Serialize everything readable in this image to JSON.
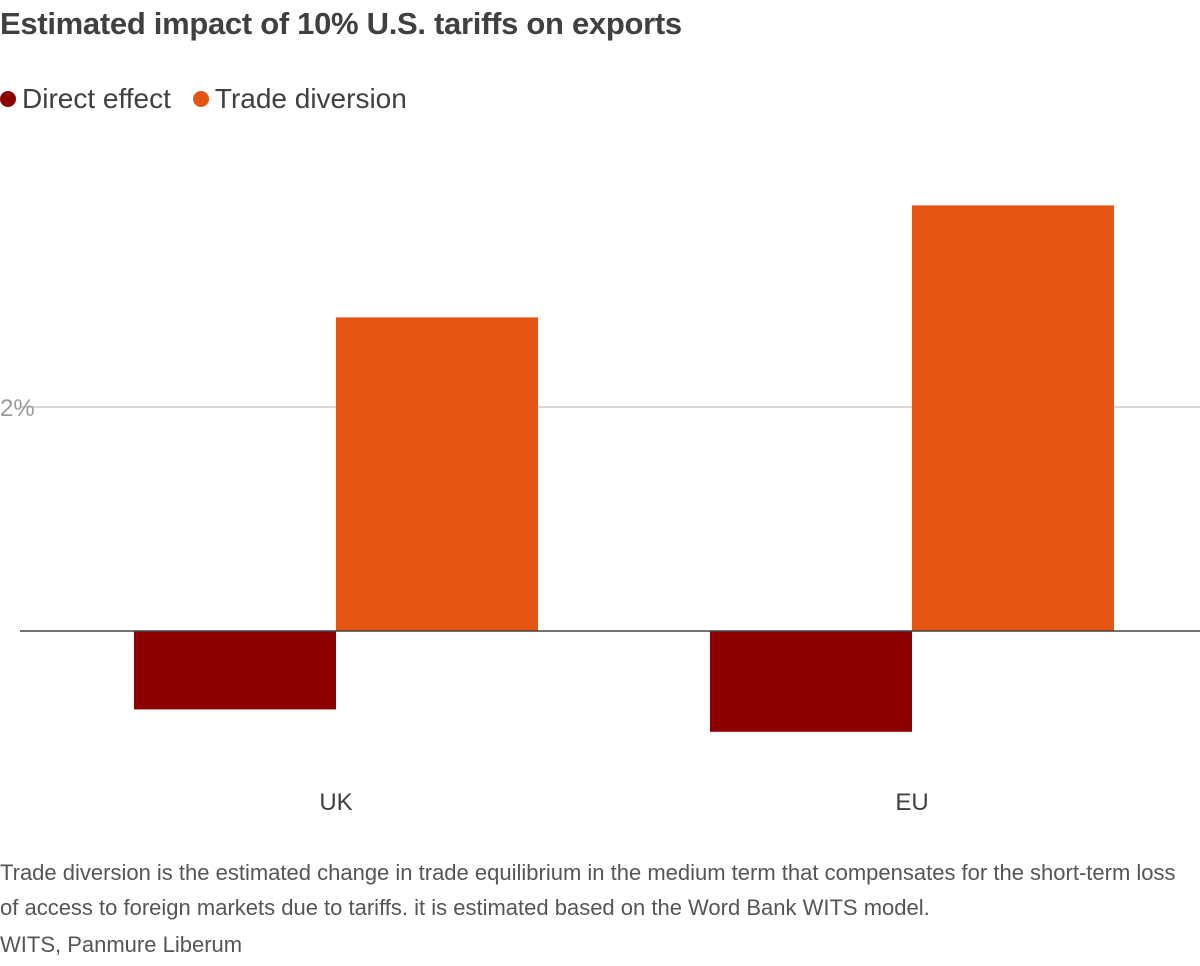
{
  "title": "Estimated impact of 10% U.S. tariffs on exports",
  "legend": [
    {
      "label": "Direct effect",
      "color": "#8b0000"
    },
    {
      "label": "Trade diversion",
      "color": "#e35511"
    }
  ],
  "chart_data": {
    "type": "bar",
    "title": "Estimated impact of 10% U.S. tariffs on exports",
    "categories": [
      "UK",
      "EU"
    ],
    "series": [
      {
        "name": "Direct effect",
        "color": "#8b0000",
        "values": [
          -0.7,
          -0.9
        ]
      },
      {
        "name": "Trade diversion",
        "color": "#e35511",
        "values": [
          2.8,
          3.8
        ]
      }
    ],
    "yticks": [
      {
        "value": 2,
        "label": "2%"
      }
    ],
    "ylim": [
      -1.5,
      4.4
    ],
    "xlabel": "",
    "ylabel": "",
    "grid": true,
    "legend_position": "top-left"
  },
  "footnote": "Trade diversion is the estimated change in trade equilibrium in the medium term that compensates for the short-term loss of access to foreign markets due to tariffs. it is estimated based on the Word Bank WITS model.",
  "source": "WITS, Panmure Liberum"
}
